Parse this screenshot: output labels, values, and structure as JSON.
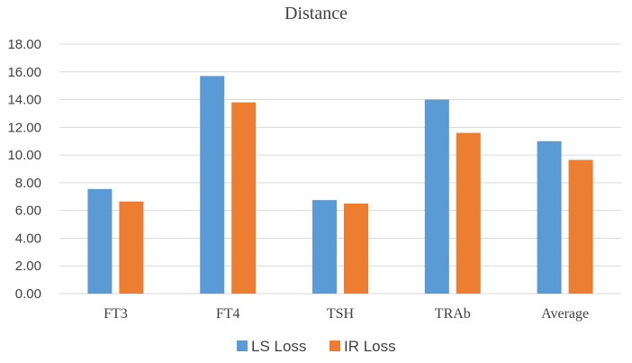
{
  "chart_data": {
    "type": "bar",
    "title": "Distance",
    "xlabel": "",
    "ylabel": "",
    "categories": [
      "FT3",
      "FT4",
      "TSH",
      "TRAb",
      "Average"
    ],
    "series": [
      {
        "name": "LS Loss",
        "color": "#5b9bd5",
        "values": [
          7.55,
          15.7,
          6.75,
          14.0,
          11.0
        ]
      },
      {
        "name": "IR Loss",
        "color": "#ed7d31",
        "values": [
          6.65,
          13.8,
          6.5,
          11.6,
          9.65
        ]
      }
    ],
    "ylim": [
      0,
      18
    ],
    "yticks": [
      "0.00",
      "2.00",
      "4.00",
      "6.00",
      "8.00",
      "10.00",
      "12.00",
      "14.00",
      "16.00",
      "18.00"
    ],
    "grid": true,
    "legend": "bottom"
  }
}
